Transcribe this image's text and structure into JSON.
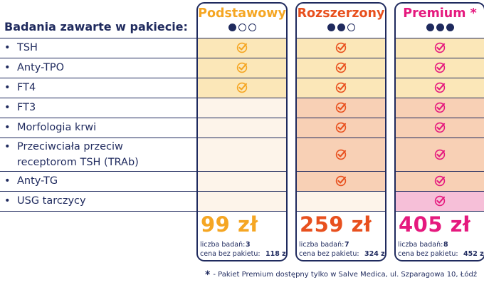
{
  "heading": "Badania zawarte w pakiecie:",
  "bullet": "•",
  "rows": [
    {
      "label": "TSH",
      "includes": [
        true,
        true,
        true
      ]
    },
    {
      "label": "Anty-TPO",
      "includes": [
        true,
        true,
        true
      ]
    },
    {
      "label": "FT4",
      "includes": [
        true,
        true,
        true
      ]
    },
    {
      "label": "FT3",
      "includes": [
        false,
        true,
        true
      ]
    },
    {
      "label": "Morfologia krwi",
      "includes": [
        false,
        true,
        true
      ]
    },
    {
      "label": "Przeciwciała przeciw receptorom TSH (TRAb)",
      "includes": [
        false,
        true,
        true
      ]
    },
    {
      "label": "Anty-TG",
      "includes": [
        false,
        true,
        true
      ]
    },
    {
      "label": "USG tarczycy",
      "includes": [
        false,
        false,
        true
      ]
    }
  ],
  "packages": [
    {
      "name": "Podstawowy",
      "level": 1,
      "price": "99 zł",
      "tests_label": "liczba badań:",
      "tests_count": "3",
      "nopkg_label": "cena bez pakietu:",
      "nopkg_price": "118 zł",
      "colors": {
        "title": "#f5a623",
        "check": "#f5a623",
        "tier1": "#fbe7b8",
        "tier2": "#fdf3e6",
        "tier3": "#fdf3e6",
        "price": "#f5a623"
      }
    },
    {
      "name": "Rozszerzony",
      "level": 2,
      "price": "259 zł",
      "tests_label": "liczba badań:",
      "tests_count": "7",
      "nopkg_label": "cena bez pakietu:",
      "nopkg_price": "324 zł",
      "colors": {
        "title": "#e8501e",
        "check": "#e8501e",
        "tier1": "#fbe7b8",
        "tier2": "#f8d0b5",
        "tier3": "#fdf3e6",
        "price": "#e8501e"
      }
    },
    {
      "name": "Premium *",
      "level": 3,
      "price": "405 zł",
      "tests_label": "liczba badań:",
      "tests_count": "8",
      "nopkg_label": "cena bez pakietu:",
      "nopkg_price": "452 zł",
      "colors": {
        "title": "#e5197e",
        "check": "#e5197e",
        "tier1": "#fbe7b8",
        "tier2": "#f8d0b5",
        "tier3": "#f6bfd8",
        "price": "#e5197e"
      }
    }
  ],
  "footnote": {
    "star": "*",
    "text": "- Pakiet Premium dostępny tylko w Salve Medica, ul. Szparagowa 10, Łódź"
  },
  "colors": {
    "navy": "#1f2a5e"
  },
  "icons": {
    "check": "check-circle-icon"
  }
}
